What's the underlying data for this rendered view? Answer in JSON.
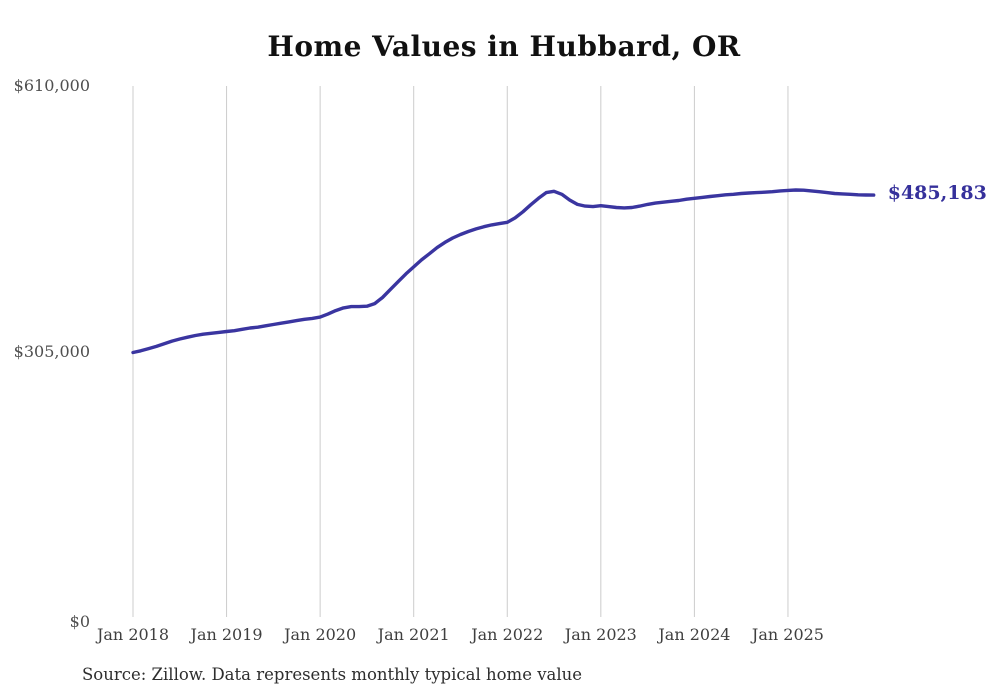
{
  "title": "Home Values in Hubbard, OR",
  "end_label": "$485,183",
  "source_note": "Source: Zillow. Data represents monthly typical home value",
  "colors": {
    "line": "#3a35a0",
    "end_label_text": "#35309b",
    "gridline": "#cccccc",
    "title_text": "#111111",
    "axis_text": "#4f4f4f",
    "background": "#ffffff"
  },
  "chart_data": {
    "type": "line",
    "title": "Home Values in Hubbard, OR",
    "xlabel": "",
    "ylabel": "",
    "x_tick_labels": [
      "Jan 2018",
      "Jan 2019",
      "Jan 2020",
      "Jan 2021",
      "Jan 2022",
      "Jan 2023",
      "Jan 2024",
      "Jan 2025"
    ],
    "y_tick_labels": [
      "$610,000",
      "$305,000",
      "$0"
    ],
    "y_tick_values": [
      610000,
      305000,
      0
    ],
    "ylim": [
      0,
      610000
    ],
    "grid": "vertical-only",
    "legend": "none",
    "annotation_last_point": "$485,183",
    "series": [
      {
        "name": "Monthly typical home value",
        "start_month": "2018-01",
        "end_month": "2025-12",
        "frequency": "monthly",
        "last_value": 485183,
        "values": [
          305000,
          307000,
          309500,
          312000,
          315000,
          318000,
          320500,
          322500,
          324500,
          326000,
          327000,
          328000,
          329000,
          330000,
          331500,
          333000,
          334000,
          335500,
          337000,
          338500,
          340000,
          341500,
          343000,
          344000,
          345500,
          349000,
          353000,
          356000,
          357500,
          357500,
          358000,
          361000,
          368000,
          377000,
          386000,
          395000,
          403000,
          411000,
          418000,
          425000,
          431000,
          436000,
          440000,
          443500,
          446500,
          449000,
          451000,
          452500,
          454000,
          459000,
          466000,
          474000,
          481500,
          488000,
          489500,
          486000,
          479500,
          474500,
          472500,
          472000,
          473000,
          472000,
          471000,
          470500,
          471000,
          472500,
          474500,
          476000,
          477000,
          478000,
          479000,
          480500,
          481500,
          482500,
          483500,
          484500,
          485500,
          486000,
          487000,
          487500,
          488000,
          488500,
          489000,
          490000,
          490500,
          491000,
          490800,
          490000,
          489000,
          488000,
          487000,
          486500,
          486000,
          485500,
          485300,
          485183
        ]
      }
    ]
  }
}
